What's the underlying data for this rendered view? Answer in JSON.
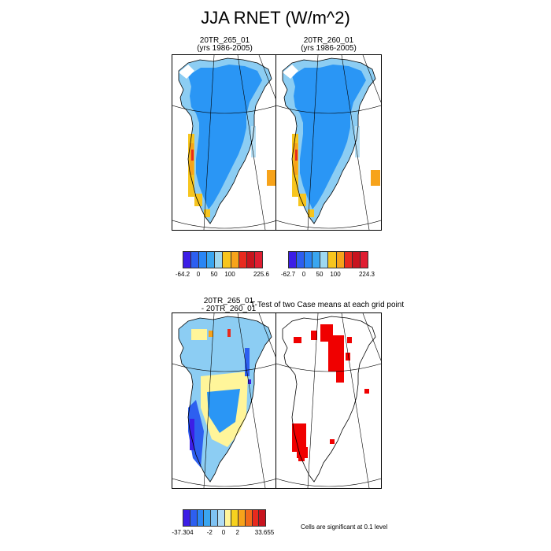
{
  "title": "JJA RNET (W/m^2)",
  "panels": [
    {
      "title_line1": "20TR_265_01",
      "title_line2": "(yrs 1986-2005)"
    },
    {
      "title_line1": "20TR_260_01",
      "title_line2": "(yrs 1986-2005)"
    },
    {
      "title_line1": "20TR_265_01",
      "title_line2": "- 20TR_260_01"
    },
    {
      "title_line1": "T-Test of two Case means at each grid point",
      "title_line2": ""
    }
  ],
  "colorbars": [
    {
      "colors": [
        "#3c1ee6",
        "#2d5ff0",
        "#2a86f5",
        "#3aa6f0",
        "#9ed8f0",
        "#f7c51e",
        "#f7a31a",
        "#e82a1e",
        "#c8141e",
        "#e01e32"
      ],
      "labels": [
        "-64.2",
        "0",
        "50",
        "100",
        "225.6"
      ]
    },
    {
      "colors": [
        "#3c1ee6",
        "#2d5ff0",
        "#2a86f5",
        "#3aa6f0",
        "#9ed8f0",
        "#f7c51e",
        "#f7a31a",
        "#e82a1e",
        "#c8141e",
        "#e01e32"
      ],
      "labels": [
        "-62.7",
        "0",
        "50",
        "100",
        "224.3"
      ]
    },
    {
      "colors": [
        "#3c1ee6",
        "#2d5ff0",
        "#2a86f5",
        "#3aa6f0",
        "#7ec2f3",
        "#b0dcf5",
        "#fff59a",
        "#f7d21e",
        "#f7a31a",
        "#f26b1a",
        "#e82a1e",
        "#c8141e"
      ],
      "labels": [
        "-37.304",
        "-2",
        "0",
        "2",
        "33.655"
      ]
    }
  ],
  "significance_note": "Cells are significant at 0.1 level",
  "palette": {
    "ocean": "#ffffff",
    "ice_blue": "#2a96f5",
    "light_blue": "#8ccdf3",
    "pale_blue": "#b8e0f5",
    "yellow": "#f7c51e",
    "orange": "#f7a31a",
    "red": "#e82a1e",
    "pale_yellow": "#fff59a",
    "sig_red": "#f00000"
  }
}
